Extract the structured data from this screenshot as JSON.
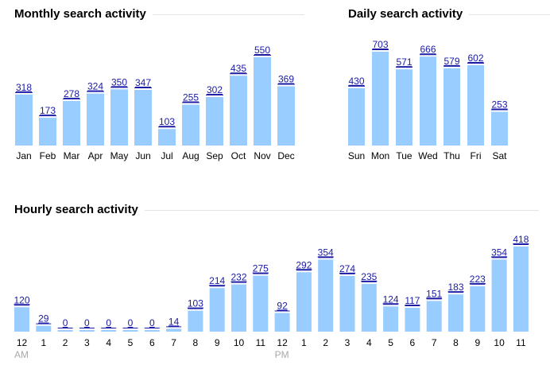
{
  "chart_data": [
    {
      "id": "monthly",
      "type": "bar",
      "title": "Monthly search activity",
      "categories": [
        "Jan",
        "Feb",
        "Mar",
        "Apr",
        "May",
        "Jun",
        "Jul",
        "Aug",
        "Sep",
        "Oct",
        "Nov",
        "Dec"
      ],
      "values": [
        318,
        173,
        278,
        324,
        350,
        347,
        103,
        255,
        302,
        435,
        550,
        369
      ],
      "bar_color": "#99ccff",
      "label_color": "#1a1aa6",
      "ylim": [
        0,
        550
      ],
      "grid": false
    },
    {
      "id": "daily",
      "type": "bar",
      "title": "Daily search activity",
      "categories": [
        "Sun",
        "Mon",
        "Tue",
        "Wed",
        "Thu",
        "Fri",
        "Sat"
      ],
      "values": [
        430,
        703,
        571,
        666,
        579,
        602,
        253
      ],
      "bar_color": "#99ccff",
      "label_color": "#1a1aa6",
      "ylim": [
        0,
        703
      ],
      "grid": false
    },
    {
      "id": "hourly",
      "type": "bar",
      "title": "Hourly search activity",
      "categories": [
        "12",
        "1",
        "2",
        "3",
        "4",
        "5",
        "6",
        "7",
        "8",
        "9",
        "10",
        "11",
        "12",
        "1",
        "2",
        "3",
        "4",
        "5",
        "6",
        "7",
        "8",
        "9",
        "10",
        "11"
      ],
      "category_sublabels": [
        "AM",
        "",
        "",
        "",
        "",
        "",
        "",
        "",
        "",
        "",
        "",
        "",
        "PM",
        "",
        "",
        "",
        "",
        "",
        "",
        "",
        "",
        "",
        "",
        ""
      ],
      "values": [
        120,
        29,
        0,
        0,
        0,
        0,
        0,
        14,
        103,
        214,
        232,
        275,
        92,
        292,
        354,
        274,
        235,
        124,
        117,
        151,
        183,
        223,
        354,
        418
      ],
      "bar_color": "#99ccff",
      "label_color": "#1a1aa6",
      "ylim": [
        0,
        418
      ],
      "grid": false
    }
  ]
}
